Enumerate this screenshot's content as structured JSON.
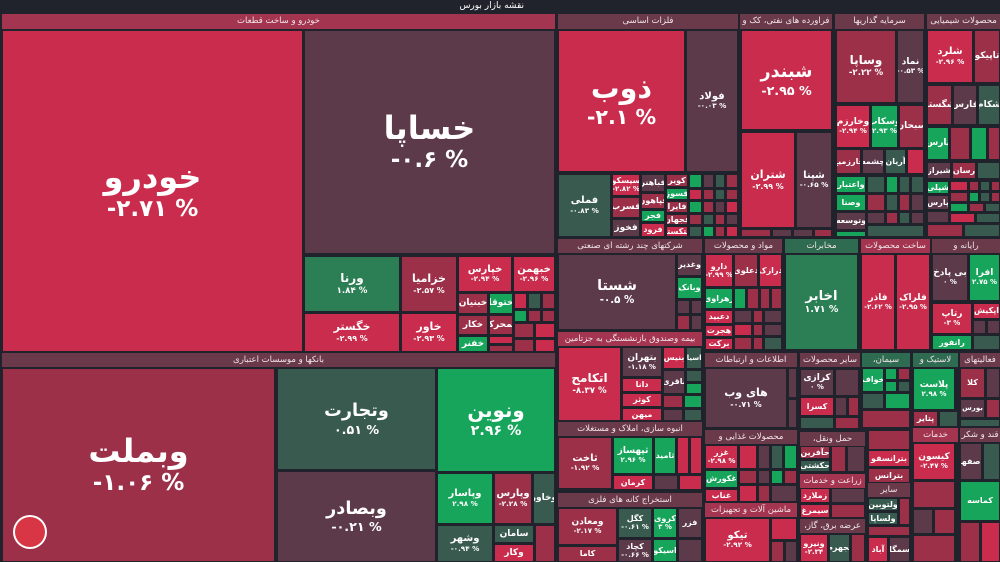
{
  "title": "نقشه بازار بورس",
  "palette": {
    "R": "#c92c4c",
    "r": "#9c3049",
    "m": "#5c3a49",
    "d": "#395a4e",
    "g": "#17a55c",
    "G": "#2c7f55"
  },
  "sectors": [
    "خودرو و ساخت قطعات",
    "بانکها و موسسات اعتباری",
    "فلزات اساسی",
    "فراورده های نفتی، کک و",
    "سرمایه گذاریها",
    "محصولات شیمیایی",
    "شرکتهای چند رشته ای صنعتی",
    "مواد و محصولات",
    "مخابرات",
    "ساخت محصولات",
    "رایانه و",
    "بیمه وصندوق بازنشستگی به جزتامین",
    "اطلاعات و ارتباطات",
    "سایر محصولات",
    "سیمان،",
    "لاستیک و",
    "فعالیتهای",
    "انبوه سازی، املاک و مستغلات",
    "استخراج کانه های فلزی",
    "محصولات غذایی و",
    "ماشین آلات و تجهیزات",
    "حمل ونقل،",
    "زراعت و خدمات",
    "عرضه برق، گاز،",
    "سایر",
    "خدمات",
    "قند و شکر"
  ],
  "tiles": [
    {
      "symbol": "خودرو",
      "change": "-۲.۷۱ %"
    },
    {
      "symbol": "خساپا",
      "change": "-۰.۶ %"
    },
    {
      "symbol": "ورنا",
      "change": "۱.۸۴ %"
    },
    {
      "symbol": "خگستر",
      "change": "-۲.۹۹ %"
    },
    {
      "symbol": "خزامیا",
      "change": "-۲.۵۷ %"
    },
    {
      "symbol": "خاور",
      "change": "-۲.۹۳ %"
    },
    {
      "symbol": "خپارس",
      "change": "-۲.۹۴ %"
    },
    {
      "symbol": "خبهمن",
      "change": "-۲.۹۶ %"
    },
    {
      "symbol": "خبنیان"
    },
    {
      "symbol": "ختوقا"
    },
    {
      "symbol": "خکار"
    },
    {
      "symbol": "خمحرکه"
    },
    {
      "symbol": "خفنر"
    },
    {
      "symbol": "وبملت",
      "change": "-۱.۰۶ %"
    },
    {
      "symbol": "وتجارت",
      "change": "۰.۵۱ %"
    },
    {
      "symbol": "وبصادر",
      "change": "-۰.۲۱ %"
    },
    {
      "symbol": "ونوین",
      "change": "۲.۹۶ %"
    },
    {
      "symbol": "وپاسار",
      "change": "۲.۹۸ %"
    },
    {
      "symbol": "وپارس",
      "change": "-۲.۲۸ %"
    },
    {
      "symbol": "وخاور"
    },
    {
      "symbol": "وشهر",
      "change": "-۰.۹۴ %"
    },
    {
      "symbol": "سامان"
    },
    {
      "symbol": "وکار"
    },
    {
      "symbol": "ذوب",
      "change": "-۲.۱ %"
    },
    {
      "symbol": "فولاد",
      "change": "-۰.۰۳ %"
    },
    {
      "symbol": "فملی",
      "change": "-۰.۸۳ %"
    },
    {
      "symbol": "سیسکو",
      "change": "-۲.۸۲ %"
    },
    {
      "symbol": "فسرب"
    },
    {
      "symbol": "فخوز"
    },
    {
      "symbol": "فباهنر"
    },
    {
      "symbol": "فپاهون"
    },
    {
      "symbol": "فجر"
    },
    {
      "symbol": "فرود"
    },
    {
      "symbol": "کویر"
    },
    {
      "symbol": "فسوز"
    },
    {
      "symbol": "فایرا"
    },
    {
      "symbol": "فجهان"
    },
    {
      "symbol": "فتکستر"
    },
    {
      "symbol": "شبندر",
      "change": "-۲.۹۵ %"
    },
    {
      "symbol": "شتران",
      "change": "-۲.۹۹ %"
    },
    {
      "symbol": "شپنا",
      "change": "-۰.۶۵ %"
    },
    {
      "symbol": "وساپا",
      "change": "-۲.۲۲ %"
    },
    {
      "symbol": "نماد",
      "change": "-۰.۵۳ %"
    },
    {
      "symbol": "وخارزم",
      "change": "-۲.۹۴ %"
    },
    {
      "symbol": "وسکاب",
      "change": "۲.۹۳ %"
    },
    {
      "symbol": "سبحان"
    },
    {
      "symbol": "خارزمیع"
    },
    {
      "symbol": "چشمه"
    },
    {
      "symbol": "آریان"
    },
    {
      "symbol": "واعتبار"
    },
    {
      "symbol": "وصنا"
    },
    {
      "symbol": "وتوسعه"
    },
    {
      "symbol": "شلرد",
      "change": "-۲.۹۶ %"
    },
    {
      "symbol": "تاپیکو"
    },
    {
      "symbol": "شگستر"
    },
    {
      "symbol": "فارس"
    },
    {
      "symbol": "شکام"
    },
    {
      "symbol": "پارس"
    },
    {
      "symbol": "شیراز"
    },
    {
      "symbol": "رسان"
    },
    {
      "symbol": "شپلی"
    },
    {
      "symbol": "پارس"
    },
    {
      "symbol": "شستا",
      "change": "-۰.۵ %"
    },
    {
      "symbol": "وغدیر"
    },
    {
      "symbol": "وبانک"
    },
    {
      "symbol": "اتکامح",
      "change": "-۸.۳۷ %"
    },
    {
      "symbol": "بتهران",
      "change": "-۱.۱۸ %"
    },
    {
      "symbol": "دانا"
    },
    {
      "symbol": "کوثر"
    },
    {
      "symbol": "میهن"
    },
    {
      "symbol": "بنیس"
    },
    {
      "symbol": "بپاسیان"
    },
    {
      "symbol": "باقری"
    },
    {
      "symbol": "دارو",
      "change": "-۲.۹۹ %"
    },
    {
      "symbol": "دعلوی"
    },
    {
      "symbol": "درازک"
    },
    {
      "symbol": "زهراوی"
    },
    {
      "symbol": "دعبید"
    },
    {
      "symbol": "هجرت"
    },
    {
      "symbol": "برکت"
    },
    {
      "symbol": "اخابر",
      "change": "۱.۷۱ %"
    },
    {
      "symbol": "فاذر",
      "change": "-۲.۶۲ %"
    },
    {
      "symbol": "فلراک",
      "change": "-۲.۹۵ %"
    },
    {
      "symbol": "بی پادخ",
      "change": "۰ %"
    },
    {
      "symbol": "افرا",
      "change": "۲.۷۵ %"
    },
    {
      "symbol": "رتاپ",
      "change": "-۳ %"
    },
    {
      "symbol": "اپکیش"
    },
    {
      "symbol": "رانفور"
    },
    {
      "symbol": "های وب",
      "change": "-۰.۷۱ %"
    },
    {
      "symbol": "کرازی",
      "change": "۰ %"
    },
    {
      "symbol": "کسرا"
    },
    {
      "symbol": "خواف"
    },
    {
      "symbol": "پلاست",
      "change": "۲.۹۸ %"
    },
    {
      "symbol": "پتایر"
    },
    {
      "symbol": "کلا"
    },
    {
      "symbol": "بورس"
    },
    {
      "symbol": "ثاخت",
      "change": "-۱.۹۲ %"
    },
    {
      "symbol": "ثپهساز",
      "change": "۲.۹۶ %"
    },
    {
      "symbol": "ثامید"
    },
    {
      "symbol": "کرمان"
    },
    {
      "symbol": "ومعادن",
      "change": "-۲.۱۷ %"
    },
    {
      "symbol": "کاما"
    },
    {
      "symbol": "کگل",
      "change": "-۰.۶۱ %"
    },
    {
      "symbol": "کروی",
      "change": "۳ %"
    },
    {
      "symbol": "فزر"
    },
    {
      "symbol": "کچاد",
      "change": "-۰.۶۶ %"
    },
    {
      "symbol": "اسیکو"
    },
    {
      "symbol": "غزر",
      "change": "-۲.۹۸ %"
    },
    {
      "symbol": "غکورش"
    },
    {
      "symbol": "غناب"
    },
    {
      "symbol": "تیکو",
      "change": "-۲.۹۲ %"
    },
    {
      "symbol": "حآفرین"
    },
    {
      "symbol": "حکشتی"
    },
    {
      "symbol": "زملارد"
    },
    {
      "symbol": "سیمرغ"
    },
    {
      "symbol": "ونیرو",
      "change": "-۲.۳۴"
    },
    {
      "symbol": "بجهرم"
    },
    {
      "symbol": "بترانسفو"
    },
    {
      "symbol": "بترانس"
    },
    {
      "symbol": "ولتوبین"
    },
    {
      "symbol": "ولساپا"
    },
    {
      "symbol": "آباد"
    },
    {
      "symbol": "سمگا"
    },
    {
      "symbol": "کیسون",
      "change": "-۲.۴۷ %"
    },
    {
      "symbol": "اصفها"
    },
    {
      "symbol": "کماسه"
    }
  ]
}
